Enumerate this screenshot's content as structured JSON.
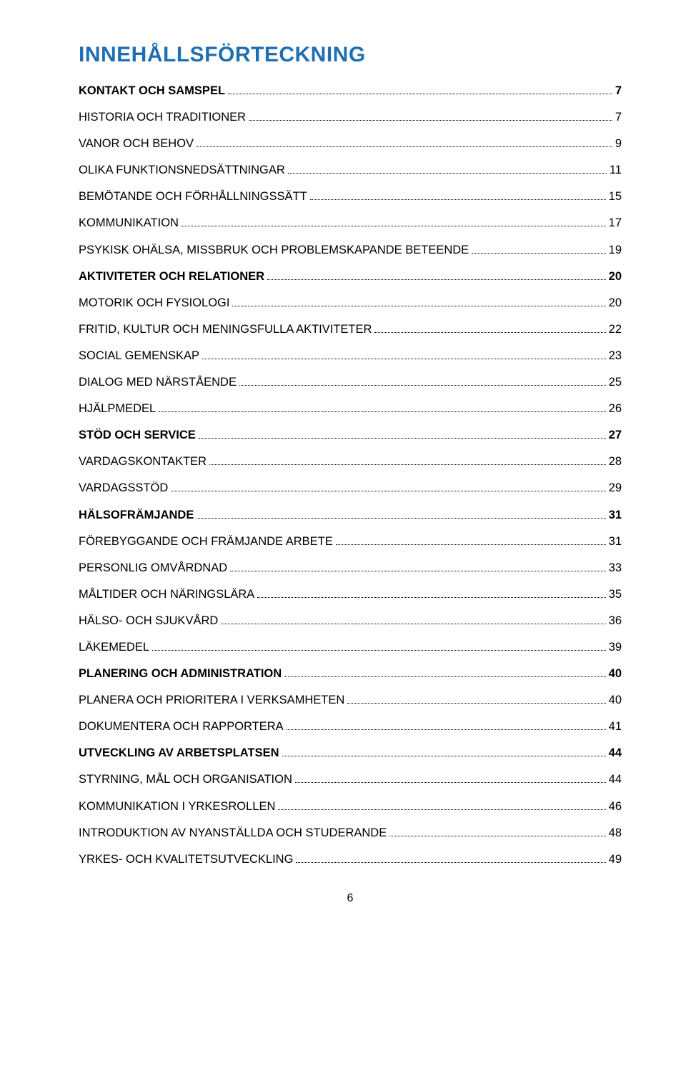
{
  "title_text": "INNEHÅLLSFÖRTECKNING",
  "title_color": "#1f6fb2",
  "text_color": "#000000",
  "page_number": "6",
  "toc": [
    {
      "label": "KONTAKT OCH SAMSPEL",
      "page": "7",
      "bold": true
    },
    {
      "label": "HISTORIA OCH TRADITIONER",
      "page": "7",
      "bold": false
    },
    {
      "label": "VANOR OCH BEHOV",
      "page": "9",
      "bold": false
    },
    {
      "label": "OLIKA FUNKTIONSNEDSÄTTNINGAR",
      "page": "11",
      "bold": false
    },
    {
      "label": "BEMÖTANDE OCH FÖRHÅLLNINGSSÄTT",
      "page": "15",
      "bold": false
    },
    {
      "label": "KOMMUNIKATION",
      "page": "17",
      "bold": false
    },
    {
      "label": "PSYKISK OHÄLSA, MISSBRUK OCH PROBLEMSKAPANDE BETEENDE",
      "page": "19",
      "bold": false
    },
    {
      "label": "AKTIVITETER OCH RELATIONER",
      "page": "20",
      "bold": true
    },
    {
      "label": "MOTORIK OCH FYSIOLOGI",
      "page": "20",
      "bold": false
    },
    {
      "label": "FRITID, KULTUR OCH MENINGSFULLA AKTIVITETER",
      "page": "22",
      "bold": false
    },
    {
      "label": "SOCIAL GEMENSKAP",
      "page": "23",
      "bold": false
    },
    {
      "label": "DIALOG MED NÄRSTÅENDE",
      "page": "25",
      "bold": false
    },
    {
      "label": "HJÄLPMEDEL",
      "page": "26",
      "bold": false
    },
    {
      "label": "STÖD OCH SERVICE",
      "page": "27",
      "bold": true
    },
    {
      "label": "VARDAGSKONTAKTER",
      "page": "28",
      "bold": false
    },
    {
      "label": "VARDAGSSTÖD",
      "page": "29",
      "bold": false
    },
    {
      "label": "HÄLSOFRÄMJANDE",
      "page": "31",
      "bold": true
    },
    {
      "label": "FÖREBYGGANDE OCH FRÄMJANDE ARBETE",
      "page": "31",
      "bold": false
    },
    {
      "label": "PERSONLIG OMVÅRDNAD",
      "page": "33",
      "bold": false
    },
    {
      "label": "MÅLTIDER OCH NÄRINGSLÄRA",
      "page": "35",
      "bold": false
    },
    {
      "label": "HÄLSO- OCH SJUKVÅRD",
      "page": "36",
      "bold": false
    },
    {
      "label": "LÄKEMEDEL",
      "page": "39",
      "bold": false
    },
    {
      "label": "PLANERING OCH ADMINISTRATION",
      "page": "40",
      "bold": true
    },
    {
      "label": "PLANERA OCH PRIORITERA I VERKSAMHETEN",
      "page": "40",
      "bold": false
    },
    {
      "label": "DOKUMENTERA OCH RAPPORTERA",
      "page": "41",
      "bold": false
    },
    {
      "label": "UTVECKLING AV ARBETSPLATSEN",
      "page": "44",
      "bold": true
    },
    {
      "label": "STYRNING, MÅL OCH ORGANISATION",
      "page": "44",
      "bold": false
    },
    {
      "label": "KOMMUNIKATION I YRKESROLLEN",
      "page": "46",
      "bold": false
    },
    {
      "label": "INTRODUKTION AV NYANSTÄLLDA OCH STUDERANDE",
      "page": "48",
      "bold": false
    },
    {
      "label": "YRKES- OCH KVALITETSUTVECKLING",
      "page": "49",
      "bold": false
    }
  ]
}
